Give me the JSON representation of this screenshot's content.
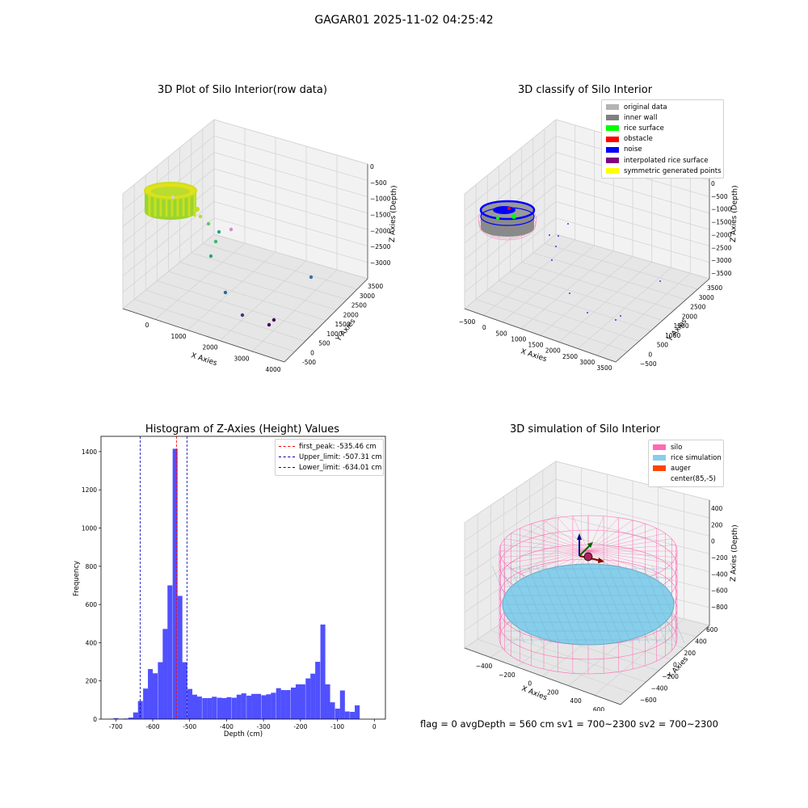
{
  "figure": {
    "suptitle": "GAGAR01 2025-11-02 04:25:42"
  },
  "chart_data": [
    {
      "type": "scatter",
      "title": "3D Plot of Silo Interior(row data)",
      "xlabel": "X Axies",
      "ylabel": "Y Axies",
      "zlabel": "Z Axies (Depth)",
      "xticks": [
        "0",
        "1000",
        "2000",
        "3000",
        "4000"
      ],
      "yticks": [
        "-500",
        "0",
        "500",
        "1000",
        "1500",
        "2000",
        "2500",
        "3000",
        "3500"
      ],
      "zticks": [
        "0",
        "−500",
        "−1000",
        "−1500",
        "−2000",
        "−2500",
        "−3000"
      ],
      "colormap": "viridis by depth",
      "points": [
        {
          "x": 1450,
          "y": 3400,
          "z": -1650,
          "color": "#b8dd2c"
        },
        {
          "x": 1650,
          "y": 3400,
          "z": -1800,
          "color": "#5dc863"
        },
        {
          "x": 1750,
          "y": 3350,
          "z": -2050,
          "color": "#21a585"
        },
        {
          "x": 1550,
          "y": 2900,
          "z": -2200,
          "color": "#35b779"
        },
        {
          "x": 1950,
          "y": 3000,
          "z": -2050,
          "color": "#d08cd0"
        },
        {
          "x": 1900,
          "y": 2600,
          "z": -2600,
          "color": "#26a582"
        },
        {
          "x": 3700,
          "y": 2300,
          "z": -3000,
          "color": "#3a6ea5"
        },
        {
          "x": 2450,
          "y": 2350,
          "z": -3050,
          "color": "#2f6b8e"
        },
        {
          "x": 2750,
          "y": 1650,
          "z": -3200,
          "color": "#46337e"
        },
        {
          "x": 3400,
          "y": 1600,
          "z": -3100,
          "color": "#440154"
        },
        {
          "x": 3250,
          "y": 1450,
          "z": -3150,
          "color": "#440154"
        }
      ]
    },
    {
      "type": "scatter",
      "title": "3D classify of Silo Interior",
      "xlabel": "X Axies",
      "ylabel": "Y Axies",
      "zlabel": "Z Axies (Depth)",
      "xticks": [
        "−500",
        "0",
        "500",
        "1000",
        "1500",
        "2000",
        "2500",
        "3000",
        "3500"
      ],
      "yticks": [
        "−500",
        "0",
        "500",
        "1000",
        "1500",
        "2000",
        "2500",
        "3000",
        "3500"
      ],
      "zticks": [
        "0",
        "−500",
        "−1000",
        "−1500",
        "−2000",
        "−2500",
        "−3000",
        "−3500"
      ],
      "legend": [
        {
          "label": "original data",
          "color": "#b3b3b3"
        },
        {
          "label": "inner wall",
          "color": "#808080"
        },
        {
          "label": "rice surface",
          "color": "#00ff00"
        },
        {
          "label": "obstacle",
          "color": "#ff0000"
        },
        {
          "label": "noise",
          "color": "#0000ff"
        },
        {
          "label": "interpolated rice surface",
          "color": "#800080"
        },
        {
          "label": "symmetric generated points",
          "color": "#ffff00"
        }
      ]
    },
    {
      "type": "bar",
      "title": "Histogram of Z-Axies (Height) Values",
      "xlabel": "Depth (cm)",
      "ylabel": "Frequency",
      "xlim": [
        -740,
        30
      ],
      "ylim": [
        0,
        1480
      ],
      "xticks": [
        -700,
        -600,
        -500,
        -400,
        -300,
        -200,
        -100,
        0
      ],
      "yticks": [
        0,
        200,
        400,
        600,
        800,
        1000,
        1200,
        1400
      ],
      "bin_width": 13.3,
      "bar_color": "#5050ff",
      "bins": [
        {
          "x": -733,
          "v": 0
        },
        {
          "x": -720,
          "v": 1
        },
        {
          "x": -706,
          "v": 5
        },
        {
          "x": -693,
          "v": 2
        },
        {
          "x": -680,
          "v": 3
        },
        {
          "x": -666,
          "v": 8
        },
        {
          "x": -653,
          "v": 35
        },
        {
          "x": -640,
          "v": 95
        },
        {
          "x": -626,
          "v": 160
        },
        {
          "x": -613,
          "v": 262
        },
        {
          "x": -600,
          "v": 240
        },
        {
          "x": -586,
          "v": 298
        },
        {
          "x": -573,
          "v": 472
        },
        {
          "x": -560,
          "v": 700
        },
        {
          "x": -546,
          "v": 1415
        },
        {
          "x": -533,
          "v": 645
        },
        {
          "x": -520,
          "v": 298
        },
        {
          "x": -506,
          "v": 158
        },
        {
          "x": -493,
          "v": 128
        },
        {
          "x": -480,
          "v": 118
        },
        {
          "x": -466,
          "v": 110
        },
        {
          "x": -453,
          "v": 110
        },
        {
          "x": -440,
          "v": 117
        },
        {
          "x": -426,
          "v": 112
        },
        {
          "x": -413,
          "v": 110
        },
        {
          "x": -400,
          "v": 115
        },
        {
          "x": -386,
          "v": 112
        },
        {
          "x": -373,
          "v": 128
        },
        {
          "x": -360,
          "v": 135
        },
        {
          "x": -346,
          "v": 123
        },
        {
          "x": -333,
          "v": 132
        },
        {
          "x": -320,
          "v": 132
        },
        {
          "x": -306,
          "v": 125
        },
        {
          "x": -293,
          "v": 130
        },
        {
          "x": -280,
          "v": 138
        },
        {
          "x": -266,
          "v": 162
        },
        {
          "x": -253,
          "v": 152
        },
        {
          "x": -240,
          "v": 152
        },
        {
          "x": -226,
          "v": 165
        },
        {
          "x": -213,
          "v": 182
        },
        {
          "x": -200,
          "v": 182
        },
        {
          "x": -186,
          "v": 213
        },
        {
          "x": -173,
          "v": 238
        },
        {
          "x": -160,
          "v": 300
        },
        {
          "x": -146,
          "v": 495
        },
        {
          "x": -133,
          "v": 182
        },
        {
          "x": -120,
          "v": 88
        },
        {
          "x": -106,
          "v": 55
        },
        {
          "x": -93,
          "v": 150
        },
        {
          "x": -80,
          "v": 40
        },
        {
          "x": -66,
          "v": 38
        },
        {
          "x": -53,
          "v": 72
        },
        {
          "x": -40,
          "v": 0
        }
      ],
      "vlines": [
        {
          "x": -535.46,
          "label": "first_peak: -535.46 cm",
          "color": "#ff0000"
        },
        {
          "x": -507.31,
          "label": "Upper_limit: -507.31 cm",
          "color": "#0000b0"
        },
        {
          "x": -634.01,
          "label": "Lower_limit: -634.01 cm",
          "color": "#0000b0"
        }
      ]
    },
    {
      "type": "surface3d",
      "title": "3D simulation of Silo Interior",
      "xlabel": "X Axies",
      "ylabel": "Y Axies",
      "zlabel": "Z Axies (Depth)",
      "xticks": [
        "−400",
        "−200",
        "0",
        "200",
        "400",
        "600"
      ],
      "yticks": [
        "−600",
        "−400",
        "−200",
        "0",
        "200",
        "400",
        "600"
      ],
      "zticks": [
        "400",
        "200",
        "0",
        "−200",
        "−400",
        "−600",
        "−800"
      ],
      "legend": [
        {
          "label": "silo",
          "color": "#ff69b4"
        },
        {
          "label": "rice simulation",
          "color": "#87ceeb"
        },
        {
          "label": "auger",
          "color": "#ff4500"
        },
        {
          "label": "center(85,-5)",
          "color": ""
        }
      ]
    }
  ],
  "footer": {
    "text": "flag = 0     avgDepth = 560 cm  sv1 = 700~2300  sv2 = 700~2300"
  }
}
